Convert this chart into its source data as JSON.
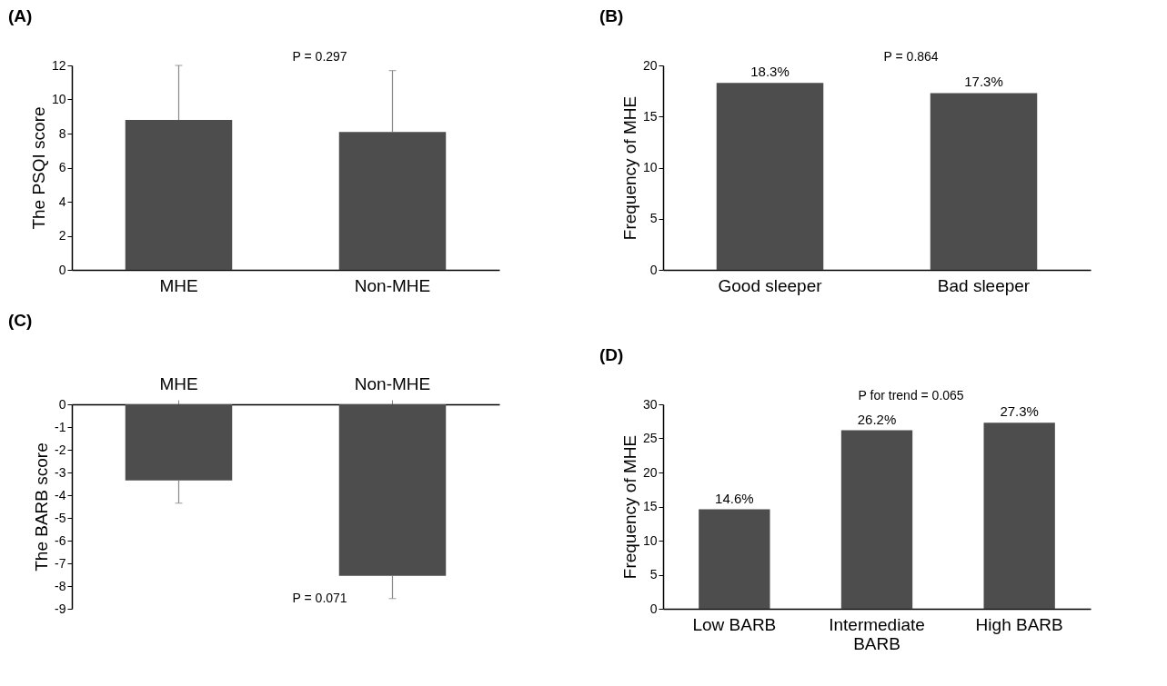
{
  "chart_data": [
    {
      "type": "bar",
      "title": "(A)",
      "ylabel": "The PSQI score",
      "categories": [
        "MHE",
        "Non-MHE"
      ],
      "series": [
        {
          "color": "#4d4d4d",
          "values": [
            8.8,
            8.1
          ],
          "errors": [
            [
              8.8,
              12
            ],
            [
              8.1,
              11.7
            ]
          ]
        }
      ],
      "ylim": [
        0,
        12
      ],
      "yticks": [
        0,
        2,
        4,
        6,
        8,
        10,
        12
      ],
      "grid": false,
      "annotations": [
        "P = 0.297"
      ]
    },
    {
      "type": "bar",
      "title": "(B)",
      "ylabel": "Frequency of MHE",
      "categories": [
        "Good sleeper",
        "Bad sleeper"
      ],
      "series": [
        {
          "color": "#4d4d4d",
          "values": [
            18.3,
            17.3
          ],
          "value_labels": [
            "18.3%",
            "17.3%"
          ]
        }
      ],
      "ylim": [
        0,
        20
      ],
      "yticks": [
        0,
        5,
        10,
        15,
        20
      ],
      "grid": false,
      "annotations": [
        "P = 0.864"
      ]
    },
    {
      "type": "bar",
      "title": "(C)",
      "ylabel": "The BARB score",
      "categories": [
        "MHE",
        "Non-MHE"
      ],
      "series": [
        {
          "color": "#4d4d4d",
          "values": [
            -3.35,
            -7.55
          ],
          "errors": [
            [
              -4.35,
              -3.35
            ],
            [
              -8.55,
              -7.55
            ]
          ]
        }
      ],
      "ylim": [
        -9,
        0
      ],
      "yticks": [
        0,
        -1,
        -2,
        -3,
        -4,
        -5,
        -6,
        -7,
        -8,
        -9
      ],
      "grid": false,
      "annotations": [
        "P = 0.071"
      ]
    },
    {
      "type": "bar",
      "title": "(D)",
      "ylabel": "Frequency of MHE",
      "categories": [
        "Low BARB",
        "Intermediate BARB",
        "High BARB"
      ],
      "series": [
        {
          "color": "#4d4d4d",
          "values": [
            14.6,
            26.2,
            27.3
          ],
          "value_labels": [
            "14.6%",
            "26.2%",
            "27.3%"
          ]
        }
      ],
      "ylim": [
        0,
        30
      ],
      "yticks": [
        0,
        5,
        10,
        15,
        20,
        25,
        30
      ],
      "grid": false,
      "annotations": [
        "P for trend = 0.065"
      ]
    }
  ]
}
